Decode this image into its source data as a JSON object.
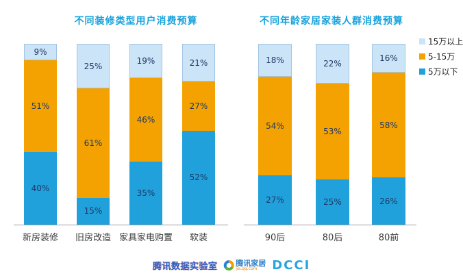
{
  "page": {
    "background": "#ffffff"
  },
  "colors": {
    "title_blue": "#17A2DC",
    "segment_blue": "#20A1DC",
    "segment_orange": "#F3A202",
    "segment_lightblue": "#CBE4F7",
    "axis_line": "#9D9D9D",
    "value_label": "#1F3864"
  },
  "legend": {
    "position": "right",
    "items": [
      {
        "label": "15万以上",
        "color": "#CBE4F7"
      },
      {
        "label": "5-15万",
        "color": "#F3A202"
      },
      {
        "label": "5万以下",
        "color": "#20A1DC"
      }
    ]
  },
  "chart_data": [
    {
      "type": "bar",
      "stacked": true,
      "title": "不同装修类型用户消费预算",
      "categories": [
        "新房装修",
        "旧房改造",
        "家具家电购置",
        "软装"
      ],
      "series": [
        {
          "name": "5万以下",
          "color": "#20A1DC",
          "values": [
            40,
            15,
            35,
            52
          ]
        },
        {
          "name": "5-15万",
          "color": "#F3A202",
          "values": [
            51,
            61,
            46,
            27
          ]
        },
        {
          "name": "15万以上",
          "color": "#CBE4F7",
          "values": [
            9,
            25,
            19,
            21
          ]
        }
      ],
      "value_suffix": "%",
      "ylim": [
        0,
        100
      ],
      "grid": false,
      "legend": false
    },
    {
      "type": "bar",
      "stacked": true,
      "title": "不同年龄家居家装人群消费预算",
      "categories": [
        "90后",
        "80后",
        "80前"
      ],
      "series": [
        {
          "name": "5万以下",
          "color": "#20A1DC",
          "values": [
            27,
            25,
            26
          ]
        },
        {
          "name": "5-15万",
          "color": "#F3A202",
          "values": [
            54,
            53,
            58
          ]
        },
        {
          "name": "15万以上",
          "color": "#CBE4F7",
          "values": [
            18,
            22,
            16
          ]
        }
      ],
      "value_suffix": "%",
      "ylim": [
        0,
        100
      ],
      "grid": false,
      "legend": true
    }
  ],
  "footer": {
    "watermark_text": "腾讯数据实验室",
    "brand_name": "腾讯家居",
    "brand_url": "jia.qq.com",
    "dcci_label": "DCCI"
  }
}
